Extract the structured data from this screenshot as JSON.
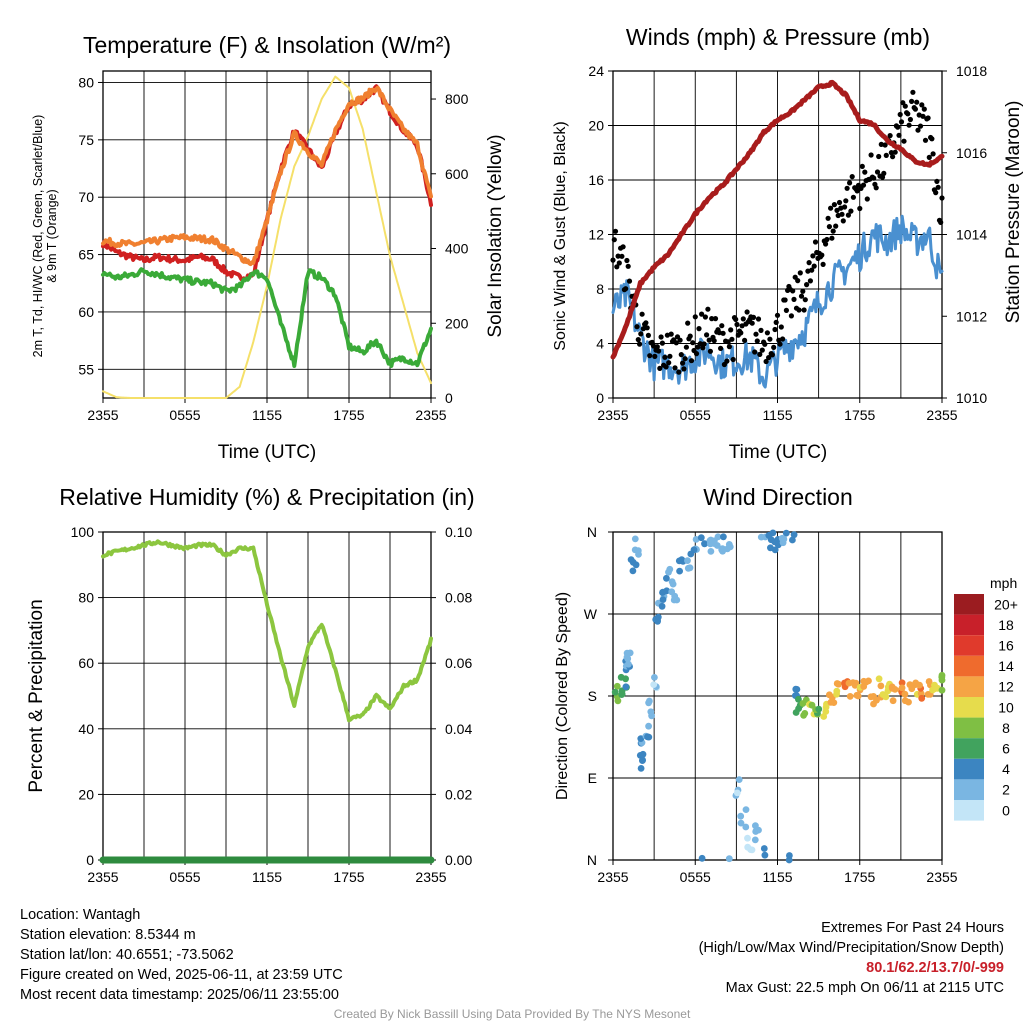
{
  "panels": {
    "temp": {
      "title": "Temperature (F) & Insolation (W/m²)",
      "xlabel": "Time (UTC)",
      "ylabel_left": "2m T, T_d, HI/WC (Red, Green, Scarlet/Blue) & 9m T (Orange)",
      "ylabel_left_line1": "2m T, Td, HI/WC (Red, Green, Scarlet/Blue)",
      "ylabel_left_line2": "& 9m T (Orange)",
      "ylabel_right": "Solar Insolation (Yellow)"
    },
    "wind": {
      "title": "Winds (mph) & Pressure (mb)",
      "xlabel": "Time (UTC)",
      "ylabel_left": "Sonic Wind & Gust (Blue, Black)",
      "ylabel_right": "Station Pressure (Maroon)"
    },
    "rh": {
      "title": "Relative Humidity (%) & Precipitation (in)",
      "ylabel_left": "Percent & Precipitation"
    },
    "dir": {
      "title": "Wind Direction",
      "ylabel_left": "Direction (Colored By Speed)",
      "colorbar_title": "mph",
      "colorbar_labels": [
        "20+",
        "18",
        "16",
        "14",
        "12",
        "10",
        "8",
        "6",
        "4",
        "2",
        "0"
      ],
      "colorbar_colors": [
        "#9b1c20",
        "#c8202a",
        "#e03a2c",
        "#ef6b2d",
        "#f5a445",
        "#e6dc4c",
        "#7fbf44",
        "#41a35e",
        "#3c85c1",
        "#7ab6e2",
        "#c3e5f7"
      ]
    }
  },
  "chart_data": [
    {
      "type": "line",
      "title": "Temperature (F) & Insolation (W/m²)",
      "xlabel": "Time (UTC)",
      "ylabel": "2m T, T_d, HI/WC (Red, Green, Scarlet/Blue) & 9m T (Orange)",
      "ylabel_right": "Solar Insolation (Yellow)",
      "x_ticks": [
        "2355",
        "0555",
        "1155",
        "1755",
        "2355"
      ],
      "x_range_hours": [
        0,
        24
      ],
      "ylim": [
        52.5,
        81
      ],
      "y_ticks": [
        55,
        60,
        65,
        70,
        75,
        80
      ],
      "ylim_right": [
        0,
        875
      ],
      "y_ticks_right": [
        0,
        200,
        400,
        600,
        800
      ],
      "grid": true,
      "x_hours": [
        0,
        1,
        2,
        3,
        4,
        5,
        6,
        7,
        8,
        9,
        10,
        11,
        12,
        13,
        14,
        15,
        16,
        17,
        18,
        19,
        20,
        21,
        22,
        23,
        24
      ],
      "series": [
        {
          "name": "2m T",
          "color": "#d02020",
          "axis": "left",
          "values": [
            66,
            65.2,
            64.8,
            64.5,
            64.8,
            64.6,
            64.5,
            64.8,
            64.6,
            63.5,
            63.0,
            63.2,
            68,
            72.5,
            75.8,
            74.2,
            72.5,
            75.5,
            78,
            78.5,
            79.5,
            77.5,
            75.8,
            74.5,
            69.5
          ]
        },
        {
          "name": "9m T",
          "color": "#f08030",
          "axis": "left",
          "values": [
            66.2,
            66.0,
            65.9,
            66.0,
            66.2,
            66.4,
            66.5,
            66.4,
            66.3,
            65.5,
            64.8,
            64.2,
            68,
            72.2,
            75.5,
            74,
            72.8,
            75.8,
            78.2,
            78.6,
            79.6,
            77.6,
            75.9,
            74.6,
            69.9
          ]
        },
        {
          "name": "Td",
          "color": "#3aaa38",
          "axis": "left",
          "values": [
            63.4,
            63.0,
            63.2,
            63.6,
            63.3,
            63.0,
            62.8,
            62.6,
            62.5,
            61.8,
            62.2,
            63.5,
            63.0,
            59.0,
            55.5,
            63.5,
            63.0,
            61.5,
            57.0,
            56.5,
            57.5,
            55.5,
            56.0,
            55.5,
            58.5
          ]
        },
        {
          "name": "Solar Insolation",
          "color": "#f5e06a",
          "axis": "right",
          "values": [
            18,
            2,
            0,
            0,
            0,
            0,
            0,
            0,
            0,
            0,
            30,
            150,
            300,
            480,
            620,
            700,
            800,
            860,
            830,
            720,
            550,
            380,
            250,
            120,
            40
          ]
        }
      ]
    },
    {
      "type": "line",
      "title": "Winds (mph) & Pressure (mb)",
      "xlabel": "Time (UTC)",
      "ylabel": "Sonic Wind & Gust (Blue, Black)",
      "ylabel_right": "Station Pressure (Maroon)",
      "x_ticks": [
        "2355",
        "0555",
        "1155",
        "1755",
        "2355"
      ],
      "x_range_hours": [
        0,
        24
      ],
      "ylim": [
        0,
        24
      ],
      "y_ticks": [
        0,
        4,
        8,
        12,
        16,
        20,
        24
      ],
      "ylim_right": [
        1010,
        1018
      ],
      "y_ticks_right": [
        1010,
        1012,
        1014,
        1016,
        1018
      ],
      "grid": true,
      "x_hours": [
        0,
        1,
        2,
        3,
        4,
        5,
        6,
        7,
        8,
        9,
        10,
        11,
        12,
        13,
        14,
        15,
        16,
        17,
        18,
        19,
        20,
        21,
        22,
        23,
        24
      ],
      "series": [
        {
          "name": "Sonic Wind",
          "color": "#4a90d0",
          "axis": "left",
          "values": [
            6.5,
            7.5,
            4.5,
            2.5,
            2.5,
            2.2,
            3.0,
            3.5,
            2.5,
            2.8,
            3.0,
            1.5,
            3.0,
            4.0,
            5.0,
            7.0,
            8.5,
            9.5,
            10.5,
            12.0,
            11.5,
            12.5,
            11.5,
            12.0,
            8.5
          ]
        },
        {
          "name": "Gust",
          "color": "#000000",
          "axis": "left",
          "values": [
            11.5,
            9.0,
            5.0,
            3.0,
            3.5,
            3.5,
            4.5,
            5.0,
            4.0,
            4.5,
            5.0,
            4.0,
            5.0,
            7.0,
            8.0,
            10.5,
            13.0,
            14.5,
            15.5,
            16.5,
            17.5,
            20.0,
            21.0,
            19.5,
            13.5
          ]
        },
        {
          "name": "Station Pressure",
          "color": "#a81c1c",
          "axis": "right",
          "values": [
            1011.0,
            1011.8,
            1012.8,
            1013.2,
            1013.5,
            1014.0,
            1014.5,
            1014.9,
            1015.2,
            1015.6,
            1016.0,
            1016.5,
            1016.8,
            1017.0,
            1017.3,
            1017.6,
            1017.7,
            1017.4,
            1016.8,
            1016.7,
            1016.3,
            1016.1,
            1015.8,
            1015.7,
            1015.9
          ]
        }
      ]
    },
    {
      "type": "line",
      "title": "Relative Humidity (%) & Precipitation (in)",
      "ylabel": "Percent & Precipitation",
      "x_ticks": [
        "2355",
        "0555",
        "1155",
        "1755",
        "2355"
      ],
      "x_range_hours": [
        0,
        24
      ],
      "ylim": [
        0,
        100
      ],
      "y_ticks": [
        0,
        20,
        40,
        60,
        80,
        100
      ],
      "ylim_right": [
        0,
        0.1
      ],
      "y_ticks_right": [
        "0.00",
        "0.02",
        "0.04",
        "0.06",
        "0.08",
        "0.10"
      ],
      "grid": true,
      "x_hours": [
        0,
        1,
        2,
        3,
        4,
        5,
        6,
        7,
        8,
        9,
        10,
        11,
        12,
        13,
        14,
        15,
        16,
        17,
        18,
        19,
        20,
        21,
        22,
        23,
        24
      ],
      "series": [
        {
          "name": "Relative Humidity",
          "color": "#8cc63f",
          "axis": "left",
          "values": [
            93,
            94,
            95,
            96,
            97,
            96,
            95,
            96,
            96,
            93,
            95,
            95,
            78,
            62,
            47,
            65,
            72,
            58,
            43,
            44,
            50,
            46,
            53,
            55,
            67
          ]
        },
        {
          "name": "Precipitation",
          "color": "#2e8b3e",
          "axis": "right",
          "values": [
            0,
            0,
            0,
            0,
            0,
            0,
            0,
            0,
            0,
            0,
            0,
            0,
            0,
            0,
            0,
            0,
            0,
            0,
            0,
            0,
            0,
            0,
            0,
            0,
            0
          ]
        }
      ]
    },
    {
      "type": "scatter",
      "title": "Wind Direction",
      "ylabel": "Direction (Colored By Speed)",
      "x_ticks": [
        "2355",
        "0555",
        "1155",
        "1755",
        "2355"
      ],
      "x_range_hours": [
        0,
        24
      ],
      "y_ticks": [
        "N",
        "E",
        "S",
        "W",
        "N"
      ],
      "y_range_degrees": [
        0,
        360
      ],
      "colorbar": {
        "title": "mph",
        "range": [
          0,
          20
        ]
      },
      "grid": true,
      "points": [
        {
          "t": 0.2,
          "dir": 185,
          "speed": 7
        },
        {
          "t": 0.5,
          "dir": 190,
          "speed": 6
        },
        {
          "t": 0.8,
          "dir": 200,
          "speed": 5
        },
        {
          "t": 1.0,
          "dir": 215,
          "speed": 3
        },
        {
          "t": 1.2,
          "dir": 222,
          "speed": 2
        },
        {
          "t": 1.5,
          "dir": 320,
          "speed": 4
        },
        {
          "t": 1.7,
          "dir": 345,
          "speed": 2
        },
        {
          "t": 2.0,
          "dir": 125,
          "speed": 3
        },
        {
          "t": 2.2,
          "dir": 110,
          "speed": 4
        },
        {
          "t": 2.5,
          "dir": 140,
          "speed": 3
        },
        {
          "t": 2.8,
          "dir": 165,
          "speed": 2
        },
        {
          "t": 3.0,
          "dir": 190,
          "speed": 1
        },
        {
          "t": 3.2,
          "dir": 260,
          "speed": 4
        },
        {
          "t": 3.5,
          "dir": 280,
          "speed": 3
        },
        {
          "t": 3.8,
          "dir": 300,
          "speed": 4
        },
        {
          "t": 4.2,
          "dir": 310,
          "speed": 2
        },
        {
          "t": 4.5,
          "dir": 285,
          "speed": 3
        },
        {
          "t": 5.0,
          "dir": 320,
          "speed": 4
        },
        {
          "t": 5.5,
          "dir": 330,
          "speed": 3
        },
        {
          "t": 6.0,
          "dir": 345,
          "speed": 3
        },
        {
          "t": 6.5,
          "dir": 352,
          "speed": 4
        },
        {
          "t": 7.0,
          "dir": 348,
          "speed": 2
        },
        {
          "t": 7.5,
          "dir": 355,
          "speed": 3
        },
        {
          "t": 8.0,
          "dir": 348,
          "speed": 3
        },
        {
          "t": 8.5,
          "dir": 352,
          "speed": 2
        },
        {
          "t": 9.0,
          "dir": 80,
          "speed": 1
        },
        {
          "t": 9.5,
          "dir": 45,
          "speed": 2
        },
        {
          "t": 10.0,
          "dir": 20,
          "speed": 1
        },
        {
          "t": 10.5,
          "dir": 30,
          "speed": 2
        },
        {
          "t": 11.0,
          "dir": 5,
          "speed": 3
        },
        {
          "t": 11.5,
          "dir": 350,
          "speed": 3
        },
        {
          "t": 12.0,
          "dir": 342,
          "speed": 4
        },
        {
          "t": 12.5,
          "dir": 350,
          "speed": 3
        },
        {
          "t": 13.0,
          "dir": 0,
          "speed": 4
        },
        {
          "t": 13.2,
          "dir": 188,
          "speed": 4
        },
        {
          "t": 13.5,
          "dir": 172,
          "speed": 6
        },
        {
          "t": 14.0,
          "dir": 165,
          "speed": 8
        },
        {
          "t": 14.5,
          "dir": 168,
          "speed": 9
        },
        {
          "t": 15.0,
          "dir": 170,
          "speed": 7
        },
        {
          "t": 15.5,
          "dir": 165,
          "speed": 10
        },
        {
          "t": 16.0,
          "dir": 180,
          "speed": 12
        },
        {
          "t": 16.5,
          "dir": 192,
          "speed": 11
        },
        {
          "t": 17.0,
          "dir": 195,
          "speed": 13
        },
        {
          "t": 17.5,
          "dir": 190,
          "speed": 12
        },
        {
          "t": 18.0,
          "dir": 186,
          "speed": 11
        },
        {
          "t": 18.5,
          "dir": 188,
          "speed": 12
        },
        {
          "t": 19.0,
          "dir": 182,
          "speed": 12
        },
        {
          "t": 19.5,
          "dir": 188,
          "speed": 11
        },
        {
          "t": 20.0,
          "dir": 185,
          "speed": 10
        },
        {
          "t": 20.5,
          "dir": 182,
          "speed": 12
        },
        {
          "t": 21.0,
          "dir": 185,
          "speed": 13
        },
        {
          "t": 21.5,
          "dir": 183,
          "speed": 12
        },
        {
          "t": 22.0,
          "dir": 186,
          "speed": 11
        },
        {
          "t": 22.5,
          "dir": 184,
          "speed": 13
        },
        {
          "t": 23.0,
          "dir": 186,
          "speed": 12
        },
        {
          "t": 23.5,
          "dir": 188,
          "speed": 10
        },
        {
          "t": 23.9,
          "dir": 195,
          "speed": 8
        }
      ]
    }
  ],
  "footer_left": {
    "location": "Location: Wantagh",
    "elevation": "Station elevation: 8.5344 m",
    "latlon": "Station lat/lon: 40.6551; -73.5062",
    "created": "Figure created on Wed, 2025-06-11, at 23:59 UTC",
    "recent": "Most recent data timestamp: 2025/06/11 23:55:00"
  },
  "footer_right": {
    "line1": "Extremes For Past 24 Hours",
    "line2": "(High/Low/Max Wind/Precipitation/Snow Depth)",
    "values": "80.1/62.2/13.7/0/-999",
    "gust": "Max Gust: 22.5 mph On 06/11 at 2115 UTC"
  },
  "credit": "Created By Nick Bassill Using Data Provided By The NYS Mesonet"
}
